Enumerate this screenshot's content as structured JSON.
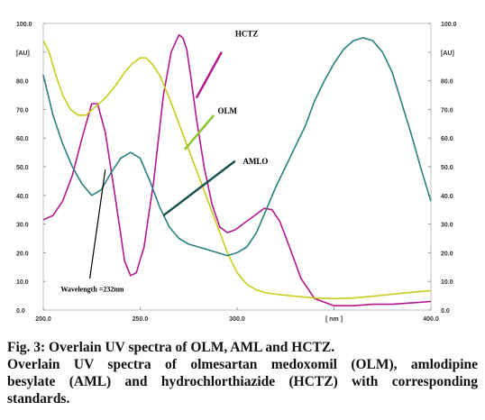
{
  "chart_data": {
    "type": "line",
    "title": "",
    "xlabel": "[ nm ]",
    "ylabel_left": "[ AU ]",
    "ylabel_right": "[ AU ]",
    "xlim": [
      200,
      400
    ],
    "ylim": [
      0,
      100
    ],
    "x_ticks": [
      "200.0",
      "250.0",
      "300.0",
      "[ nm ]",
      "400.0"
    ],
    "x_tick_values": [
      200,
      250,
      300,
      350,
      400
    ],
    "y_ticks": [
      "0.0",
      "10.0",
      "20.0",
      "30.0",
      "40.0",
      "50.0",
      "60.0",
      "70.0",
      "80.0",
      "[AU]",
      "100.0"
    ],
    "y_tick_values": [
      0,
      10,
      20,
      30,
      40,
      50,
      60,
      70,
      80,
      90,
      100
    ],
    "series": [
      {
        "name": "HCTZ",
        "color": "#b5178f",
        "x": [
          200,
          205,
          210,
          215,
          220,
          225,
          228,
          232,
          237,
          242,
          245,
          248,
          252,
          257,
          262,
          266,
          270,
          272,
          274,
          276,
          279,
          283,
          287,
          291,
          295,
          299,
          304,
          309,
          314,
          318,
          322,
          327,
          333,
          340,
          350,
          360,
          370,
          380,
          390,
          400
        ],
        "y": [
          31.5,
          33,
          38,
          47,
          60,
          72,
          72,
          62,
          40,
          17,
          12,
          13,
          22,
          45,
          75,
          90,
          96,
          95,
          91,
          82,
          67,
          50,
          37,
          29,
          27,
          28,
          30.5,
          33,
          35.5,
          35,
          31,
          22,
          11,
          4,
          1.5,
          1.5,
          2,
          2,
          2.5,
          3
        ]
      },
      {
        "name": "OLM",
        "color": "#c9cc1a",
        "x": [
          200,
          203,
          206,
          210,
          214,
          218,
          222,
          227,
          232,
          237,
          242,
          246,
          250,
          253,
          256,
          260,
          265,
          270,
          275,
          280,
          285,
          290,
          295,
          300,
          305,
          310,
          315,
          320,
          330,
          340,
          350,
          360,
          370,
          380,
          390,
          400
        ],
        "y": [
          94,
          90,
          83,
          75,
          70,
          68,
          68,
          71,
          74,
          78,
          83,
          86,
          88,
          88,
          86,
          82,
          74,
          65,
          56,
          47,
          38,
          29,
          20,
          13,
          9,
          7,
          6,
          5.5,
          4.8,
          4.2,
          4,
          4.2,
          4.8,
          5.5,
          6.2,
          6.8
        ]
      },
      {
        "name": "AMLO",
        "color": "#2a7f80",
        "x": [
          200,
          205,
          210,
          215,
          220,
          225,
          230,
          235,
          240,
          245,
          250,
          255,
          260,
          265,
          270,
          275,
          280,
          285,
          290,
          295,
          300,
          305,
          310,
          315,
          320,
          325,
          330,
          335,
          340,
          345,
          350,
          355,
          360,
          365,
          370,
          375,
          380,
          385,
          390,
          395,
          400
        ],
        "y": [
          82,
          68,
          58,
          50,
          44,
          40,
          42,
          48,
          53,
          55,
          53,
          45,
          36,
          29,
          25,
          23,
          22,
          21,
          20,
          19,
          20,
          22,
          27,
          35,
          43,
          50,
          57,
          64,
          73,
          80,
          86,
          91,
          94,
          95,
          94,
          90,
          83,
          72,
          61,
          49,
          38
        ]
      }
    ],
    "annotations": [
      {
        "text": "HCTZ",
        "color": "#b5178f"
      },
      {
        "text": "OLM",
        "color": "#8fc531"
      },
      {
        "text": "AMLO",
        "color": "#1a4f50"
      },
      {
        "text": "Wavelength =232nm",
        "color": "#000000"
      }
    ],
    "grid": false,
    "legend": "none"
  },
  "caption": {
    "fig_line": "Fig. 3: Overlain UV spectra of OLM, AML and HCTZ.",
    "desc_line1": "Overlain UV spectra of olmesartan medoxomil (OLM), amlodipine",
    "desc_line2": "besylate (AML) and hydrochlorthiazide (HCTZ) with corresponding",
    "desc_line3": "standards."
  }
}
